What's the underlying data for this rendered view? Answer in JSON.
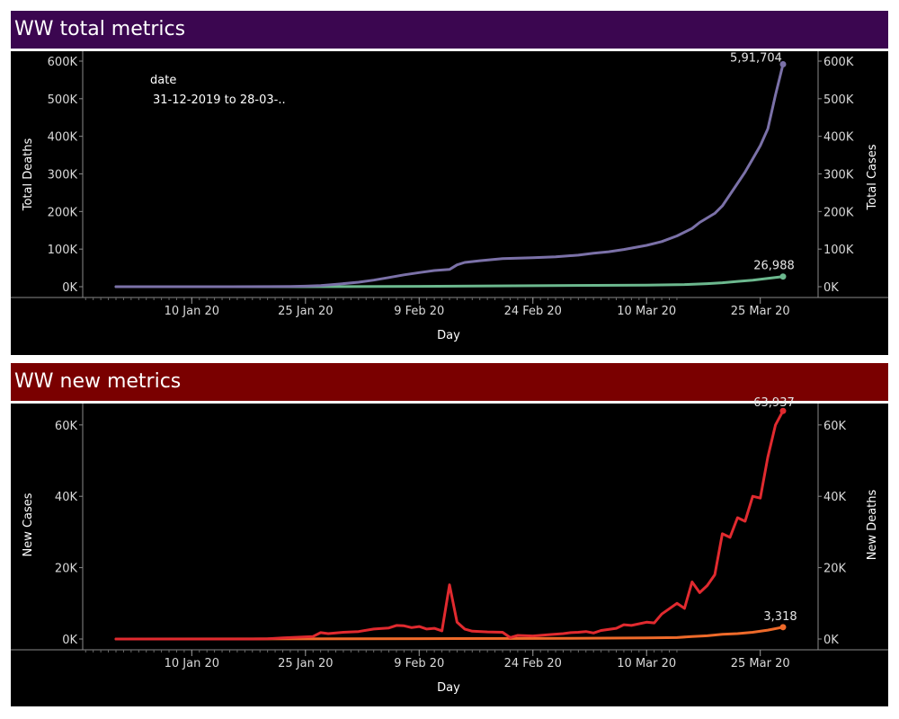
{
  "panels": [
    {
      "title": "WW total metrics",
      "colors": {
        "header_bg": "#3b0650",
        "line_a": "#7b71a8",
        "line_b": "#6cb88e"
      }
    },
    {
      "title": "WW new metrics",
      "colors": {
        "header_bg": "#7a0000",
        "line_a": "#e12a2f",
        "line_b": "#ee6a2a"
      }
    }
  ],
  "chart_data": [
    {
      "type": "line",
      "title": "WW total metrics",
      "xlabel": "Day",
      "ylabel_left": "Total Deaths",
      "ylabel_right": "Total Cases",
      "x_tick_labels": [
        "10 Jan 20",
        "25 Jan 20",
        "9 Feb 20",
        "24 Feb 20",
        "10 Mar 20",
        "25 Mar 20"
      ],
      "y_tick_labels": [
        "0K",
        "100K",
        "200K",
        "300K",
        "400K",
        "500K",
        "600K"
      ],
      "ylim": [
        0,
        600000
      ],
      "annotation": {
        "label": "date",
        "value": "31-12-2019 to 28-03-.."
      },
      "series": [
        {
          "name": "Total Cases",
          "color": "#7b71a8",
          "end_label": "5,91,704",
          "points": [
            [
              "2019-12-31",
              27
            ],
            [
              "2020-01-10",
              59
            ],
            [
              "2020-01-15",
              60
            ],
            [
              "2020-01-20",
              280
            ],
            [
              "2020-01-23",
              650
            ],
            [
              "2020-01-25",
              1500
            ],
            [
              "2020-01-27",
              2900
            ],
            [
              "2020-01-29",
              6100
            ],
            [
              "2020-02-01",
              11950
            ],
            [
              "2020-02-03",
              17400
            ],
            [
              "2020-02-05",
              24500
            ],
            [
              "2020-02-07",
              31500
            ],
            [
              "2020-02-09",
              37500
            ],
            [
              "2020-02-11",
              43000
            ],
            [
              "2020-02-13",
              46000
            ],
            [
              "2020-02-14",
              58000
            ],
            [
              "2020-02-15",
              64500
            ],
            [
              "2020-02-17",
              69000
            ],
            [
              "2020-02-20",
              74500
            ],
            [
              "2020-02-24",
              77000
            ],
            [
              "2020-02-27",
              79500
            ],
            [
              "2020-03-01",
              84000
            ],
            [
              "2020-03-03",
              89000
            ],
            [
              "2020-03-05",
              93000
            ],
            [
              "2020-03-07",
              99000
            ],
            [
              "2020-03-10",
              110000
            ],
            [
              "2020-03-12",
              120000
            ],
            [
              "2020-03-14",
              135000
            ],
            [
              "2020-03-16",
              155000
            ],
            [
              "2020-03-17",
              171000
            ],
            [
              "2020-03-19",
              195000
            ],
            [
              "2020-03-20",
              215000
            ],
            [
              "2020-03-21",
              245000
            ],
            [
              "2020-03-22",
              275000
            ],
            [
              "2020-03-23",
              305000
            ],
            [
              "2020-03-24",
              340000
            ],
            [
              "2020-03-25",
              375000
            ],
            [
              "2020-03-26",
              420000
            ],
            [
              "2020-03-27",
              510000
            ],
            [
              "2020-03-28",
              591704
            ]
          ]
        },
        {
          "name": "Total Deaths",
          "color": "#6cb88e",
          "end_label": "26,988",
          "points": [
            [
              "2019-12-31",
              0
            ],
            [
              "2020-01-25",
              41
            ],
            [
              "2020-02-09",
              909
            ],
            [
              "2020-02-24",
              2700
            ],
            [
              "2020-03-10",
              4300
            ],
            [
              "2020-03-15",
              5800
            ],
            [
              "2020-03-18",
              8200
            ],
            [
              "2020-03-20",
              10500
            ],
            [
              "2020-03-22",
              14000
            ],
            [
              "2020-03-24",
              17500
            ],
            [
              "2020-03-26",
              22000
            ],
            [
              "2020-03-28",
              26988
            ]
          ]
        }
      ]
    },
    {
      "type": "line",
      "title": "WW new metrics",
      "xlabel": "Day",
      "ylabel_left": "New Cases",
      "ylabel_right": "New Deaths",
      "x_tick_labels": [
        "10 Jan 20",
        "25 Jan 20",
        "9 Feb 20",
        "24 Feb 20",
        "10 Mar 20",
        "25 Mar 20"
      ],
      "y_tick_labels": [
        "0K",
        "20K",
        "40K",
        "60K"
      ],
      "ylim": [
        0,
        66000
      ],
      "series": [
        {
          "name": "New Cases",
          "color": "#e12a2f",
          "end_label": "63,937",
          "points": [
            [
              "2019-12-31",
              0
            ],
            [
              "2020-01-18",
              0
            ],
            [
              "2020-01-20",
              80
            ],
            [
              "2020-01-22",
              300
            ],
            [
              "2020-01-24",
              500
            ],
            [
              "2020-01-26",
              700
            ],
            [
              "2020-01-27",
              1800
            ],
            [
              "2020-01-28",
              1500
            ],
            [
              "2020-01-30",
              1900
            ],
            [
              "2020-02-01",
              2100
            ],
            [
              "2020-02-03",
              2800
            ],
            [
              "2020-02-05",
              3100
            ],
            [
              "2020-02-06",
              3800
            ],
            [
              "2020-02-07",
              3700
            ],
            [
              "2020-02-08",
              3200
            ],
            [
              "2020-02-09",
              3500
            ],
            [
              "2020-02-10",
              2800
            ],
            [
              "2020-02-11",
              3000
            ],
            [
              "2020-02-12",
              2300
            ],
            [
              "2020-02-13",
              15200
            ],
            [
              "2020-02-14",
              4700
            ],
            [
              "2020-02-15",
              2800
            ],
            [
              "2020-02-16",
              2200
            ],
            [
              "2020-02-18",
              2000
            ],
            [
              "2020-02-20",
              1900
            ],
            [
              "2020-02-21",
              400
            ],
            [
              "2020-02-22",
              1000
            ],
            [
              "2020-02-24",
              850
            ],
            [
              "2020-02-26",
              1200
            ],
            [
              "2020-02-28",
              1500
            ],
            [
              "2020-02-29",
              1800
            ],
            [
              "2020-03-01",
              1900
            ],
            [
              "2020-03-02",
              2100
            ],
            [
              "2020-03-03",
              1700
            ],
            [
              "2020-03-04",
              2400
            ],
            [
              "2020-03-06",
              3000
            ],
            [
              "2020-03-07",
              4000
            ],
            [
              "2020-03-08",
              3800
            ],
            [
              "2020-03-10",
              4700
            ],
            [
              "2020-03-11",
              4500
            ],
            [
              "2020-03-12",
              7000
            ],
            [
              "2020-03-13",
              8500
            ],
            [
              "2020-03-14",
              10000
            ],
            [
              "2020-03-15",
              8600
            ],
            [
              "2020-03-16",
              16000
            ],
            [
              "2020-03-17",
              13000
            ],
            [
              "2020-03-18",
              15000
            ],
            [
              "2020-03-19",
              18000
            ],
            [
              "2020-03-20",
              29500
            ],
            [
              "2020-03-21",
              28500
            ],
            [
              "2020-03-22",
              34000
            ],
            [
              "2020-03-23",
              33000
            ],
            [
              "2020-03-24",
              40000
            ],
            [
              "2020-03-25",
              39500
            ],
            [
              "2020-03-26",
              51000
            ],
            [
              "2020-03-27",
              60000
            ],
            [
              "2020-03-28",
              63937
            ]
          ]
        },
        {
          "name": "New Deaths",
          "color": "#ee6a2a",
          "end_label": "3,318",
          "points": [
            [
              "2019-12-31",
              0
            ],
            [
              "2020-02-09",
              90
            ],
            [
              "2020-02-24",
              150
            ],
            [
              "2020-03-10",
              300
            ],
            [
              "2020-03-14",
              400
            ],
            [
              "2020-03-16",
              700
            ],
            [
              "2020-03-18",
              900
            ],
            [
              "2020-03-20",
              1300
            ],
            [
              "2020-03-22",
              1500
            ],
            [
              "2020-03-24",
              1900
            ],
            [
              "2020-03-26",
              2500
            ],
            [
              "2020-03-28",
              3318
            ]
          ]
        }
      ]
    }
  ]
}
